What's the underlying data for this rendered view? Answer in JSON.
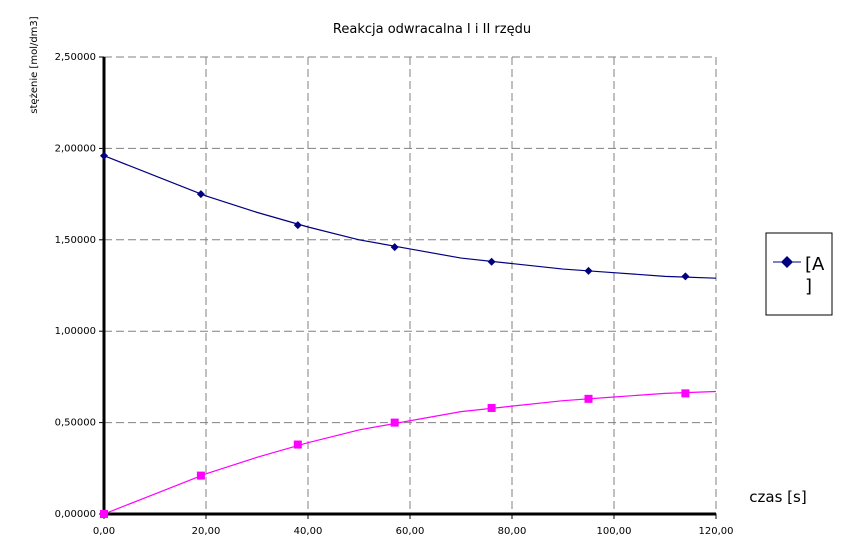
{
  "chart_data": {
    "type": "line",
    "title": "Reakcja odwracalna I i II rzędu",
    "xlabel": "czas [s]",
    "ylabel": "stężenie [mol/dm3]",
    "xlim": [
      0,
      120
    ],
    "ylim": [
      0,
      2.5
    ],
    "x_ticks": [
      "0,00",
      "20,00",
      "40,00",
      "60,00",
      "80,00",
      "100,00",
      "120,00"
    ],
    "y_ticks": [
      "0,00000",
      "0,50000",
      "1,00000",
      "1,50000",
      "2,00000",
      "2,50000"
    ],
    "grid": true,
    "legend_position": "right",
    "series": [
      {
        "name": "[A]",
        "color": "#000080",
        "marker": "diamond",
        "x": [
          0,
          19,
          38,
          57,
          76,
          95,
          114
        ],
        "y": [
          1.96,
          1.75,
          1.58,
          1.46,
          1.38,
          1.33,
          1.3
        ],
        "curve_x": [
          0,
          10,
          20,
          30,
          40,
          50,
          60,
          70,
          80,
          90,
          100,
          110,
          120
        ],
        "curve_y": [
          1.96,
          1.85,
          1.74,
          1.65,
          1.57,
          1.5,
          1.45,
          1.4,
          1.37,
          1.34,
          1.32,
          1.3,
          1.29
        ]
      },
      {
        "name": "",
        "color": "#ff00ff",
        "marker": "square",
        "x": [
          0,
          19,
          38,
          57,
          76,
          95,
          114
        ],
        "y": [
          0.0,
          0.21,
          0.38,
          0.5,
          0.58,
          0.63,
          0.66
        ],
        "curve_x": [
          0,
          10,
          20,
          30,
          40,
          50,
          60,
          70,
          80,
          90,
          100,
          110,
          120
        ],
        "curve_y": [
          0.0,
          0.11,
          0.22,
          0.31,
          0.39,
          0.46,
          0.51,
          0.56,
          0.59,
          0.62,
          0.64,
          0.66,
          0.67
        ]
      }
    ],
    "legend_entries": [
      "[A",
      "]"
    ]
  }
}
